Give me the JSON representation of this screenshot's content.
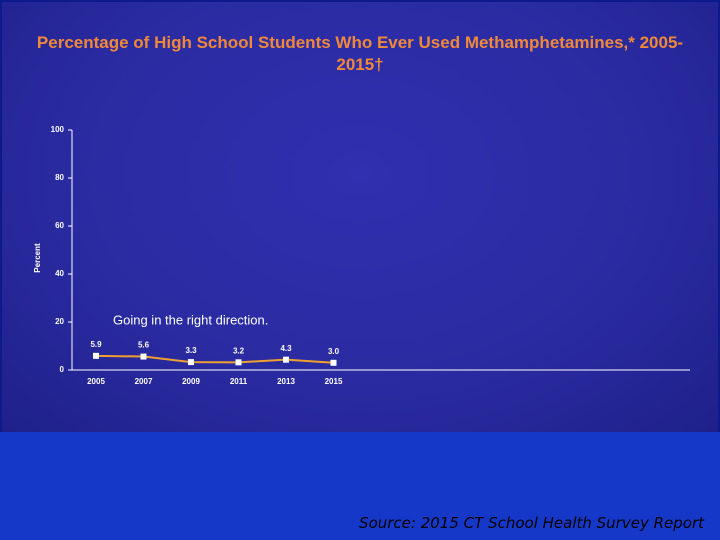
{
  "chart_data": {
    "type": "line",
    "title": "Percentage of High School Students Who Ever Used Methamphetamines,* 2005-2015†",
    "y_label": "Percent",
    "annotation": "Going in the right direction.",
    "source": "Source: 2015 CT School Health Survey Report",
    "categories": [
      "2005",
      "2007",
      "2009",
      "2011",
      "2013",
      "2015"
    ],
    "series": [
      {
        "name": "Ever used methamphetamines",
        "color": "#f0a030",
        "values": [
          5.9,
          5.6,
          3.3,
          3.2,
          4.3,
          3.0
        ],
        "value_labels": [
          "5.9",
          "5.6",
          "3.3",
          "3.2",
          "4.3",
          "3.0"
        ]
      }
    ],
    "ylim": [
      0,
      100
    ],
    "yticks": [
      0,
      20,
      40,
      60,
      80,
      100
    ]
  }
}
